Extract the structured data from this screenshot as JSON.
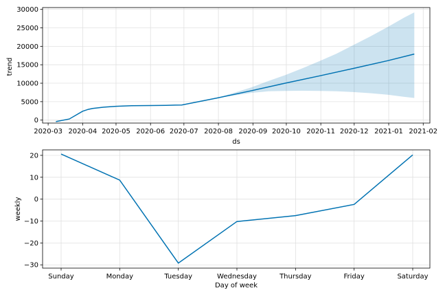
{
  "chart_data": [
    {
      "type": "line",
      "xlabel": "ds",
      "ylabel": "trend",
      "x_ticks": [
        "2020-03",
        "2020-04",
        "2020-05",
        "2020-06",
        "2020-07",
        "2020-08",
        "2020-09",
        "2020-10",
        "2020-11",
        "2020-12",
        "2021-01",
        "2021-02"
      ],
      "y_ticks": [
        "0",
        "5000",
        "10000",
        "15000",
        "20000",
        "25000",
        "30000"
      ],
      "xlim": [
        "2020-02-25",
        "2021-02-07"
      ],
      "ylim": [
        -800,
        30500
      ],
      "grid": true,
      "line_color": "#0072B2",
      "band_color": "#0072B2",
      "series": [
        {
          "x": [
            "2020-03-08",
            "2020-03-20",
            "2020-04-01",
            "2020-04-06",
            "2020-04-10",
            "2020-04-20",
            "2020-05-01",
            "2020-05-15",
            "2020-06-01",
            "2020-06-15",
            "2020-06-29",
            "2020-07-31",
            "2020-08-31",
            "2020-09-30",
            "2020-10-31",
            "2020-11-30",
            "2020-12-31",
            "2021-01-24"
          ],
          "values": [
            -400,
            300,
            2400,
            2900,
            3150,
            3500,
            3750,
            3900,
            3950,
            4000,
            4100,
            6000,
            8000,
            10000,
            12000,
            14000,
            16100,
            17900
          ]
        }
      ],
      "uncertainty_band": {
        "x": [
          "2020-06-29",
          "2020-07-31",
          "2020-08-31",
          "2020-09-15",
          "2020-09-30",
          "2020-10-15",
          "2020-10-31",
          "2020-11-15",
          "2020-11-30",
          "2020-12-15",
          "2020-12-31",
          "2021-01-15",
          "2021-01-24"
        ],
        "lower": [
          4100,
          6000,
          7400,
          7800,
          7900,
          7950,
          7900,
          7800,
          7600,
          7300,
          6900,
          6300,
          6000
        ],
        "upper": [
          4100,
          6000,
          8900,
          10600,
          12200,
          14000,
          16000,
          18000,
          20300,
          22600,
          25200,
          27800,
          29200
        ]
      }
    },
    {
      "type": "line",
      "xlabel": "Day of week",
      "ylabel": "weekly",
      "categories": [
        "Sunday",
        "Monday",
        "Tuesday",
        "Wednesday",
        "Thursday",
        "Friday",
        "Saturday"
      ],
      "y_ticks": [
        "20",
        "10",
        "0",
        "−10",
        "−20",
        "−30"
      ],
      "ylim": [
        -31.5,
        22.5
      ],
      "grid": true,
      "line_color": "#0072B2",
      "series": [
        {
          "values": [
            20.6,
            8.7,
            -29.2,
            -10.2,
            -7.5,
            -2.4,
            20.2
          ]
        }
      ]
    }
  ]
}
